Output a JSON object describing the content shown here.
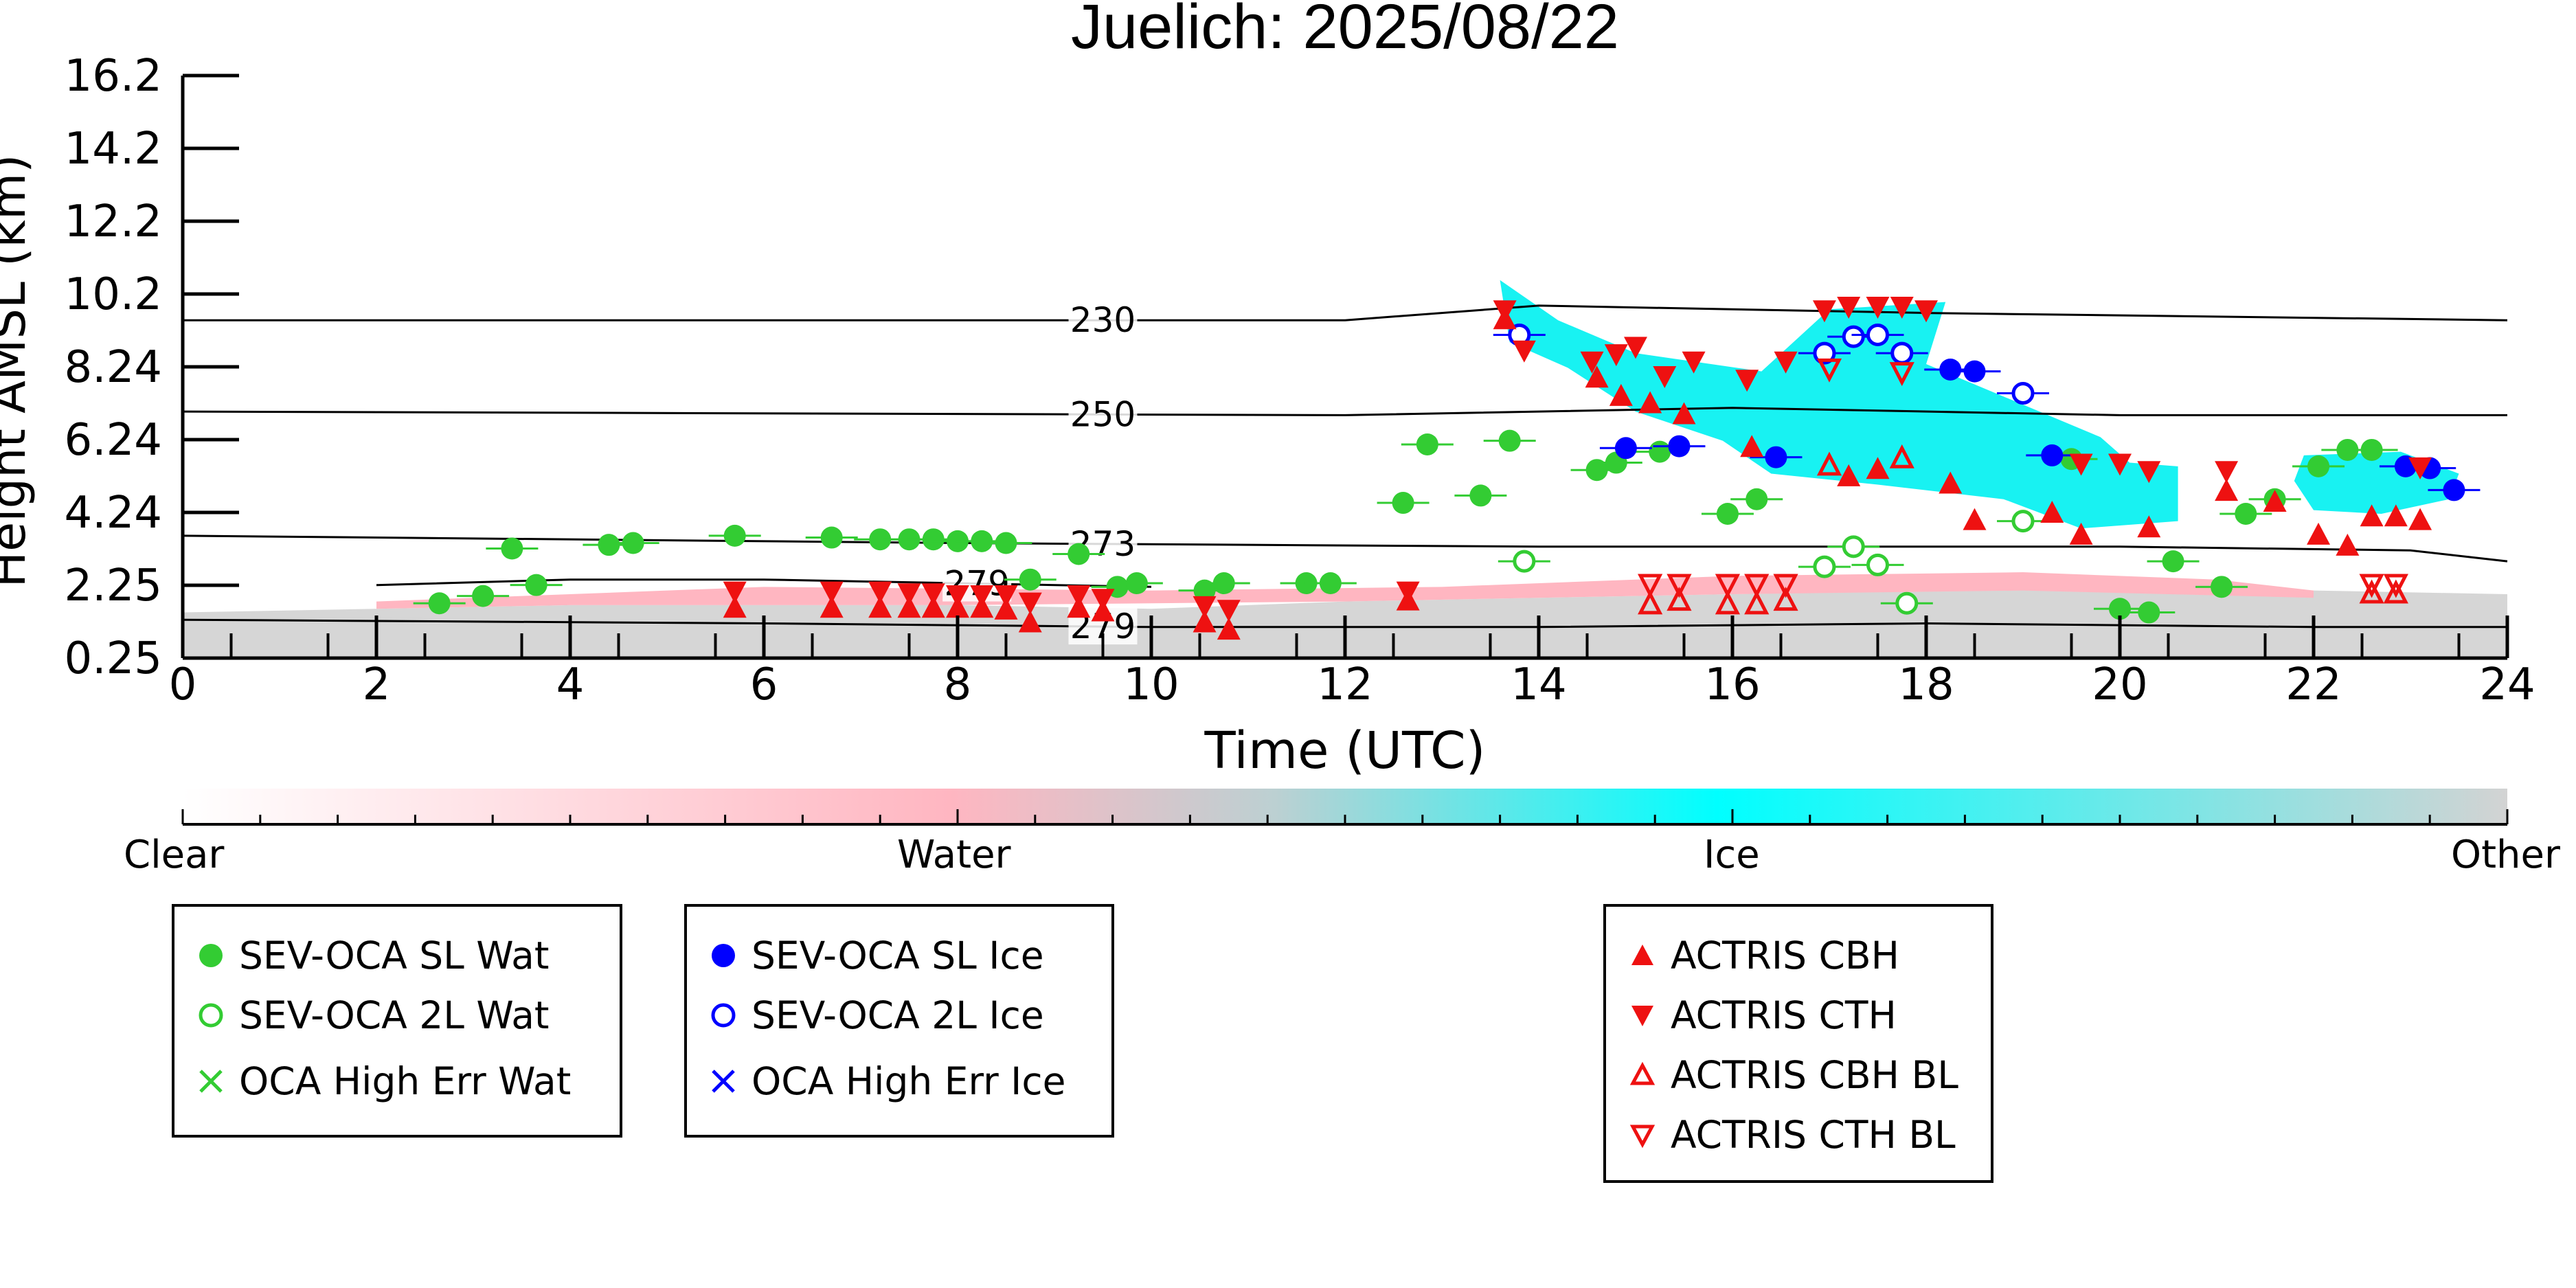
{
  "chart_data": {
    "type": "scatter",
    "title": "Juelich: 2025/08/22",
    "xlabel": "Time (UTC)",
    "ylabel": "Height AMSL (km)",
    "xlim": [
      0,
      24
    ],
    "ylim": [
      0.25,
      16.2
    ],
    "x_ticks": [
      "0",
      "2",
      "4",
      "6",
      "8",
      "10",
      "12",
      "14",
      "16",
      "18",
      "20",
      "22",
      "24"
    ],
    "y_ticks": [
      "0.25",
      "2.25",
      "4.24",
      "6.24",
      "8.24",
      "10.2",
      "12.2",
      "14.2",
      "16.2"
    ],
    "isotherms": [
      {
        "label": "230",
        "label_x": 9.5,
        "points": [
          [
            0,
            9.5
          ],
          [
            12,
            9.5
          ],
          [
            14,
            9.9
          ],
          [
            18,
            9.7
          ],
          [
            24,
            9.5
          ]
        ]
      },
      {
        "label": "250",
        "label_x": 9.5,
        "points": [
          [
            0,
            7.0
          ],
          [
            12,
            6.9
          ],
          [
            16,
            7.1
          ],
          [
            20,
            6.9
          ],
          [
            24,
            6.9
          ]
        ]
      },
      {
        "label": "273",
        "label_x": 9.5,
        "points": [
          [
            0,
            3.6
          ],
          [
            8,
            3.4
          ],
          [
            14,
            3.3
          ],
          [
            20,
            3.3
          ],
          [
            23,
            3.2
          ],
          [
            24,
            2.9
          ]
        ]
      },
      {
        "label": "279",
        "label_x": 8.2,
        "points": [
          [
            2,
            2.25
          ],
          [
            4,
            2.4
          ],
          [
            6,
            2.4
          ],
          [
            8,
            2.3
          ],
          [
            10,
            2.2
          ]
        ]
      },
      {
        "label": "279",
        "label_x": 9.5,
        "points": [
          [
            0,
            1.3
          ],
          [
            6,
            1.2
          ],
          [
            10,
            1.1
          ],
          [
            14,
            1.1
          ],
          [
            18,
            1.2
          ],
          [
            22,
            1.1
          ],
          [
            24,
            1.1
          ]
        ]
      }
    ],
    "colorbar": {
      "labels": [
        "Clear",
        "Water",
        "Ice",
        "Other"
      ],
      "colors": [
        "#ffffff",
        "#ffb6c1",
        "#00ffff",
        "#d3d3d3"
      ]
    },
    "series": [
      {
        "name": "SEV-OCA SL Wat",
        "marker": "filled-circle",
        "color": "#33cc33",
        "points": [
          [
            2.65,
            1.75
          ],
          [
            3.1,
            1.95
          ],
          [
            3.4,
            3.25
          ],
          [
            3.65,
            2.25
          ],
          [
            4.4,
            3.35
          ],
          [
            4.65,
            3.4
          ],
          [
            5.7,
            3.6
          ],
          [
            6.7,
            3.55
          ],
          [
            7.2,
            3.5
          ],
          [
            7.5,
            3.5
          ],
          [
            7.75,
            3.5
          ],
          [
            8.0,
            3.45
          ],
          [
            8.25,
            3.45
          ],
          [
            8.5,
            3.4
          ],
          [
            8.75,
            2.4
          ],
          [
            9.25,
            3.1
          ],
          [
            9.65,
            2.2
          ],
          [
            9.85,
            2.3
          ],
          [
            10.55,
            2.1
          ],
          [
            10.75,
            2.3
          ],
          [
            11.6,
            2.3
          ],
          [
            11.85,
            2.3
          ],
          [
            12.6,
            4.5
          ],
          [
            12.85,
            6.1
          ],
          [
            13.4,
            4.7
          ],
          [
            13.7,
            6.2
          ],
          [
            14.6,
            5.4
          ],
          [
            14.8,
            5.6
          ],
          [
            15.25,
            5.9
          ],
          [
            15.95,
            4.2
          ],
          [
            16.25,
            4.6
          ],
          [
            19.5,
            5.7
          ],
          [
            20.0,
            1.6
          ],
          [
            20.3,
            1.5
          ],
          [
            20.55,
            2.9
          ],
          [
            21.05,
            2.2
          ],
          [
            21.3,
            4.2
          ],
          [
            21.6,
            4.6
          ],
          [
            22.05,
            5.5
          ],
          [
            22.35,
            5.95
          ],
          [
            22.6,
            5.95
          ]
        ]
      },
      {
        "name": "SEV-OCA 2L Wat",
        "marker": "open-circle",
        "color": "#33cc33",
        "points": [
          [
            13.85,
            2.9
          ],
          [
            16.95,
            2.75
          ],
          [
            17.25,
            3.3
          ],
          [
            17.5,
            2.8
          ],
          [
            17.8,
            1.75
          ],
          [
            19.0,
            4.0
          ]
        ]
      },
      {
        "name": "OCA High Err Wat",
        "marker": "x",
        "color": "#33cc33",
        "points": []
      },
      {
        "name": "SEV-OCA SL Ice",
        "marker": "filled-circle",
        "color": "#0000ff",
        "points": [
          [
            14.9,
            6.0
          ],
          [
            15.45,
            6.05
          ],
          [
            16.45,
            5.75
          ],
          [
            18.25,
            8.15
          ],
          [
            18.5,
            8.1
          ],
          [
            19.3,
            5.8
          ],
          [
            22.95,
            5.5
          ],
          [
            23.2,
            5.45
          ],
          [
            23.45,
            4.85
          ]
        ]
      },
      {
        "name": "SEV-OCA 2L Ice",
        "marker": "open-circle",
        "color": "#0000ff",
        "points": [
          [
            13.8,
            9.1
          ],
          [
            16.95,
            8.6
          ],
          [
            17.25,
            9.05
          ],
          [
            17.5,
            9.1
          ],
          [
            17.75,
            8.6
          ],
          [
            19.0,
            7.5
          ]
        ]
      },
      {
        "name": "OCA High Err Ice",
        "marker": "x",
        "color": "#0000ff",
        "points": []
      },
      {
        "name": "ACTRIS CBH",
        "marker": "triangle-up",
        "color": "#ee1111",
        "points": [
          [
            5.7,
            1.6
          ],
          [
            6.7,
            1.6
          ],
          [
            7.2,
            1.6
          ],
          [
            7.5,
            1.6
          ],
          [
            7.75,
            1.6
          ],
          [
            8.0,
            1.6
          ],
          [
            8.25,
            1.6
          ],
          [
            8.5,
            1.55
          ],
          [
            8.75,
            1.2
          ],
          [
            9.25,
            1.6
          ],
          [
            9.5,
            1.5
          ],
          [
            10.55,
            1.2
          ],
          [
            10.8,
            1.0
          ],
          [
            12.65,
            1.8
          ],
          [
            13.65,
            9.5
          ],
          [
            14.6,
            7.9
          ],
          [
            14.85,
            7.4
          ],
          [
            15.15,
            7.2
          ],
          [
            15.5,
            6.9
          ],
          [
            16.2,
            6.0
          ],
          [
            17.2,
            5.2
          ],
          [
            17.5,
            5.4
          ],
          [
            18.25,
            5.0
          ],
          [
            18.5,
            4.0
          ],
          [
            19.3,
            4.2
          ],
          [
            19.6,
            3.6
          ],
          [
            20.3,
            3.8
          ],
          [
            21.1,
            4.8
          ],
          [
            21.6,
            4.5
          ],
          [
            22.05,
            3.6
          ],
          [
            22.35,
            3.3
          ],
          [
            22.6,
            4.1
          ],
          [
            22.85,
            4.1
          ],
          [
            23.1,
            4.0
          ]
        ]
      },
      {
        "name": "ACTRIS CTH",
        "marker": "triangle-down",
        "color": "#ee1111",
        "points": [
          [
            5.7,
            2.1
          ],
          [
            6.7,
            2.1
          ],
          [
            7.2,
            2.1
          ],
          [
            7.5,
            2.05
          ],
          [
            7.75,
            2.05
          ],
          [
            8.0,
            2.0
          ],
          [
            8.25,
            2.0
          ],
          [
            8.5,
            2.0
          ],
          [
            8.75,
            1.8
          ],
          [
            9.25,
            2.0
          ],
          [
            9.5,
            1.9
          ],
          [
            10.55,
            1.7
          ],
          [
            10.8,
            1.6
          ],
          [
            12.65,
            2.1
          ],
          [
            13.65,
            9.8
          ],
          [
            13.85,
            8.7
          ],
          [
            14.55,
            8.4
          ],
          [
            14.8,
            8.6
          ],
          [
            15.0,
            8.8
          ],
          [
            15.3,
            8.0
          ],
          [
            15.6,
            8.4
          ],
          [
            16.15,
            7.9
          ],
          [
            16.55,
            8.4
          ],
          [
            16.95,
            9.8
          ],
          [
            17.2,
            9.9
          ],
          [
            17.5,
            9.9
          ],
          [
            17.75,
            9.9
          ],
          [
            18.0,
            9.8
          ],
          [
            19.6,
            5.6
          ],
          [
            20.0,
            5.6
          ],
          [
            20.3,
            5.4
          ],
          [
            21.1,
            5.4
          ],
          [
            23.1,
            5.5
          ]
        ]
      },
      {
        "name": "ACTRIS CBH BL",
        "marker": "open-triangle-up",
        "color": "#ee1111",
        "points": [
          [
            15.15,
            1.7
          ],
          [
            15.45,
            1.8
          ],
          [
            15.95,
            1.7
          ],
          [
            16.25,
            1.7
          ],
          [
            16.55,
            1.8
          ],
          [
            17.0,
            5.5
          ],
          [
            17.75,
            5.7
          ],
          [
            22.6,
            2.0
          ],
          [
            22.85,
            2.0
          ]
        ]
      },
      {
        "name": "ACTRIS CTH BL",
        "marker": "open-triangle-down",
        "color": "#ee1111",
        "points": [
          [
            15.15,
            2.3
          ],
          [
            15.45,
            2.3
          ],
          [
            15.95,
            2.3
          ],
          [
            16.25,
            2.3
          ],
          [
            16.55,
            2.3
          ],
          [
            17.0,
            8.2
          ],
          [
            17.75,
            8.1
          ],
          [
            22.6,
            2.3
          ],
          [
            22.85,
            2.3
          ]
        ]
      }
    ],
    "legend": [
      {
        "entries": [
          "SEV-OCA SL Wat",
          "SEV-OCA 2L Wat",
          "OCA High Err Wat"
        ]
      },
      {
        "entries": [
          "SEV-OCA SL Ice",
          "SEV-OCA 2L Ice",
          "OCA High Err Ice"
        ]
      },
      {
        "entries": [
          "ACTRIS CBH",
          "ACTRIS CTH",
          "ACTRIS CBH BL",
          "ACTRIS CTH BL"
        ]
      }
    ]
  }
}
